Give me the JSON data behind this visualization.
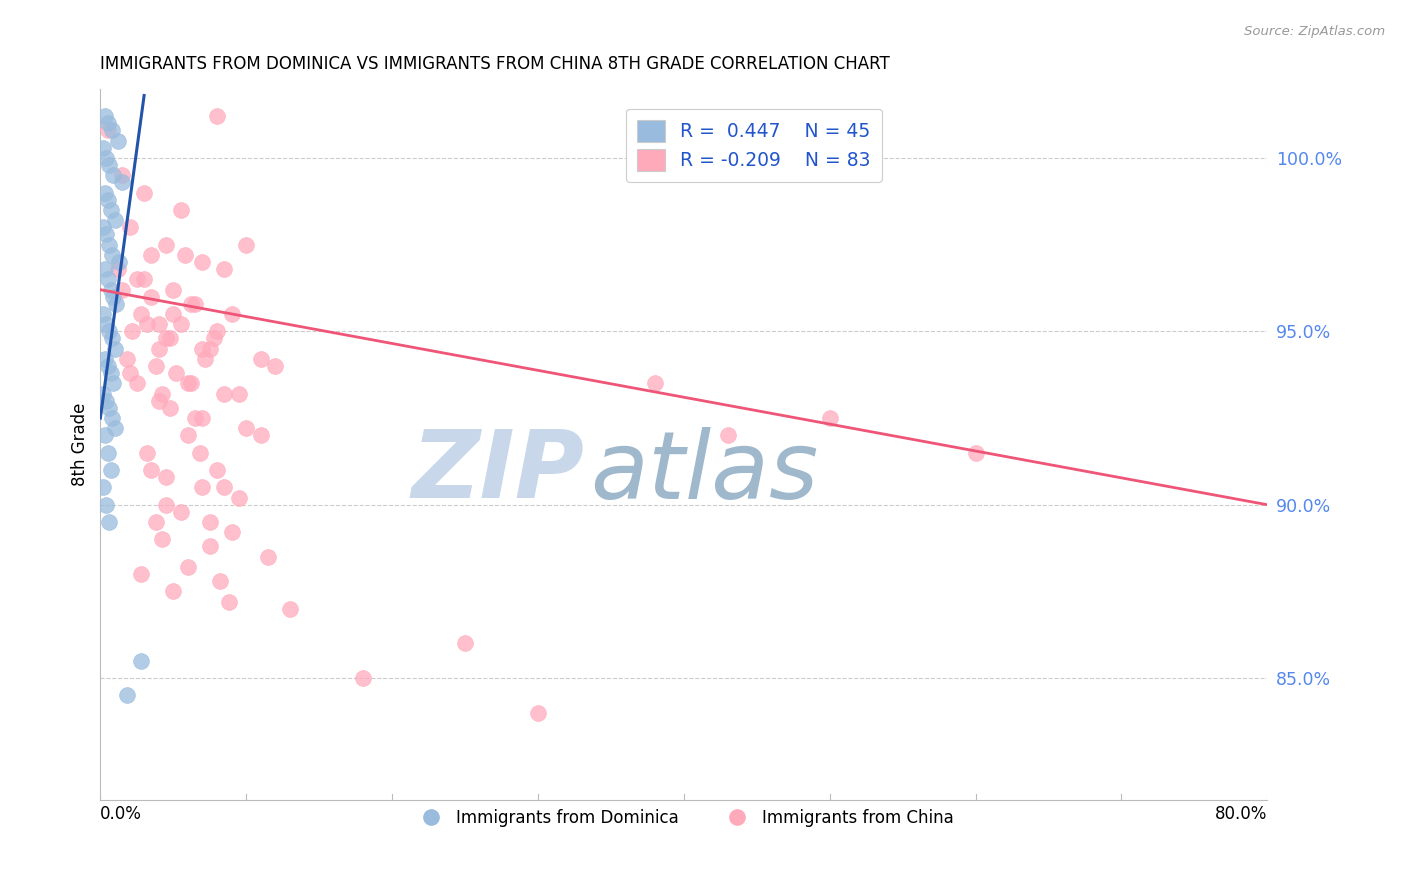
{
  "title": "IMMIGRANTS FROM DOMINICA VS IMMIGRANTS FROM CHINA 8TH GRADE CORRELATION CHART",
  "source": "Source: ZipAtlas.com",
  "ylabel": "8th Grade",
  "label_dominica": "Immigrants from Dominica",
  "label_china": "Immigrants from China",
  "blue_color": "#99BBDD",
  "pink_color": "#FFAABB",
  "blue_line_color": "#2255AA",
  "pink_line_color": "#EE5577",
  "watermark_zip_color": "#C8D8EA",
  "watermark_atlas_color": "#A0B8CC",
  "x_range": [
    0.0,
    80.0
  ],
  "y_range": [
    81.5,
    102.0
  ],
  "y_ticks": [
    85.0,
    90.0,
    95.0,
    100.0
  ],
  "y_tick_labels": [
    "85.0%",
    "90.0%",
    "95.0%",
    "100.0%"
  ],
  "right_y_ticks": [
    85.0,
    90.0,
    95.0,
    100.0
  ],
  "right_y_tick_labels": [
    "85.0%",
    "90.0%",
    "95.0%",
    "100.0%"
  ],
  "legend_text_1": "R =  0.447    N = 45",
  "legend_text_2": "R = -0.209    N = 83",
  "blue_scatter_x": [
    0.3,
    0.5,
    0.8,
    1.2,
    0.2,
    0.4,
    0.6,
    0.9,
    1.5,
    0.3,
    0.5,
    0.7,
    1.0,
    0.2,
    0.4,
    0.6,
    0.8,
    1.3,
    0.3,
    0.5,
    0.7,
    0.9,
    1.1,
    0.2,
    0.4,
    0.6,
    0.8,
    1.0,
    0.3,
    0.5,
    0.7,
    0.9,
    0.2,
    0.4,
    0.6,
    0.8,
    1.0,
    0.3,
    0.5,
    0.7,
    0.2,
    0.4,
    0.6,
    2.8,
    1.8
  ],
  "blue_scatter_y": [
    101.2,
    101.0,
    100.8,
    100.5,
    100.3,
    100.0,
    99.8,
    99.5,
    99.3,
    99.0,
    98.8,
    98.5,
    98.2,
    98.0,
    97.8,
    97.5,
    97.2,
    97.0,
    96.8,
    96.5,
    96.2,
    96.0,
    95.8,
    95.5,
    95.2,
    95.0,
    94.8,
    94.5,
    94.2,
    94.0,
    93.8,
    93.5,
    93.2,
    93.0,
    92.8,
    92.5,
    92.2,
    92.0,
    91.5,
    91.0,
    90.5,
    90.0,
    89.5,
    85.5,
    84.5
  ],
  "pink_scatter_x": [
    0.5,
    1.5,
    3.0,
    5.5,
    8.0,
    2.0,
    4.5,
    7.0,
    3.5,
    1.2,
    2.5,
    5.0,
    6.5,
    9.0,
    4.0,
    2.2,
    4.8,
    7.5,
    1.8,
    3.8,
    2.0,
    6.0,
    10.0,
    4.2,
    5.8,
    8.5,
    3.0,
    1.5,
    3.5,
    6.2,
    5.0,
    3.2,
    8.0,
    4.5,
    7.0,
    11.0,
    2.8,
    5.5,
    7.8,
    4.0,
    7.2,
    12.0,
    5.2,
    2.5,
    8.5,
    4.8,
    6.5,
    10.0,
    6.0,
    3.2,
    8.0,
    4.5,
    7.0,
    9.5,
    5.5,
    3.8,
    9.0,
    4.2,
    7.5,
    11.5,
    6.0,
    2.8,
    8.2,
    5.0,
    8.8,
    13.0,
    6.2,
    9.5,
    4.0,
    7.0,
    11.0,
    6.8,
    3.5,
    8.5,
    4.5,
    7.5,
    38.0,
    50.0,
    43.0,
    60.0,
    25.0,
    18.0,
    30.0
  ],
  "pink_scatter_y": [
    100.8,
    99.5,
    99.0,
    98.5,
    101.2,
    98.0,
    97.5,
    97.0,
    97.2,
    96.8,
    96.5,
    96.2,
    95.8,
    95.5,
    95.2,
    95.0,
    94.8,
    94.5,
    94.2,
    94.0,
    93.8,
    93.5,
    97.5,
    93.2,
    97.2,
    96.8,
    96.5,
    96.2,
    96.0,
    95.8,
    95.5,
    95.2,
    95.0,
    94.8,
    94.5,
    94.2,
    95.5,
    95.2,
    94.8,
    94.5,
    94.2,
    94.0,
    93.8,
    93.5,
    93.2,
    92.8,
    92.5,
    92.2,
    92.0,
    91.5,
    91.0,
    90.8,
    90.5,
    90.2,
    89.8,
    89.5,
    89.2,
    89.0,
    88.8,
    88.5,
    88.2,
    88.0,
    87.8,
    87.5,
    87.2,
    87.0,
    93.5,
    93.2,
    93.0,
    92.5,
    92.0,
    91.5,
    91.0,
    90.5,
    90.0,
    89.5,
    93.5,
    92.5,
    92.0,
    91.5,
    86.0,
    85.0,
    84.0
  ],
  "blue_trendline_x": [
    0.0,
    3.0
  ],
  "blue_trendline_y": [
    92.5,
    101.8
  ],
  "pink_trendline_x": [
    0.0,
    80.0
  ],
  "pink_trendline_y": [
    96.2,
    90.0
  ]
}
